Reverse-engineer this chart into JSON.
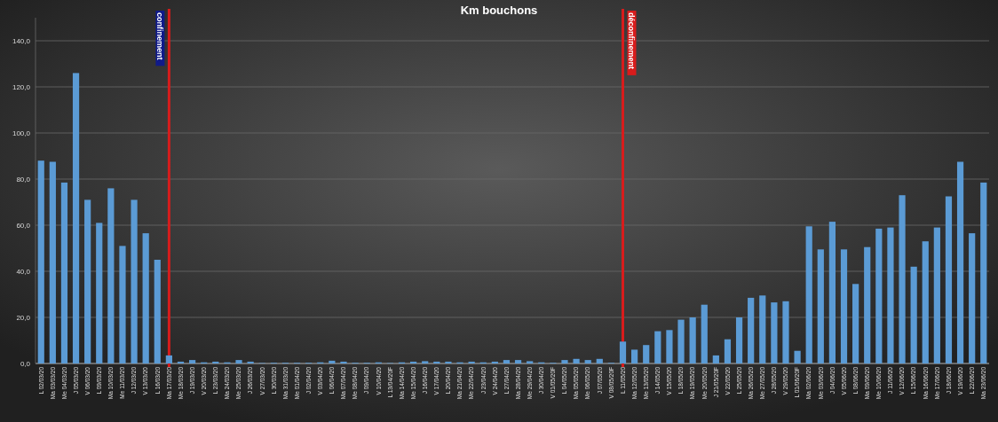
{
  "chart_data": {
    "type": "bar",
    "title": "Km bouchons",
    "categories": [
      "L 02/03/20",
      "Ma 03/03/20",
      "Me 04/03/20",
      "J 05/03/20",
      "V 06/03/20",
      "L 09/03/20",
      "Ma 10/03/20",
      "Me 11/03/20",
      "J 12/03/20",
      "V 13/03/20",
      "L 16/03/20",
      "Ma 17/03/20",
      "Me 18/03/20",
      "J 19/03/20",
      "V 20/03/20",
      "L 23/03/20",
      "Ma 24/03/20",
      "Me 25/03/20",
      "J 26/03/20",
      "V 27/03/20",
      "L 30/03/20",
      "Ma 31/03/20",
      "Me 01/04/20",
      "J 02/04/20",
      "V 03/04/20",
      "L 06/04/20",
      "Ma 07/04/20",
      "Me 08/04/20",
      "J 09/04/20",
      "V 10/04/20",
      "L 13/04/20F",
      "Ma 14/04/20",
      "Me 15/04/20",
      "J 16/04/20",
      "V 17/04/20",
      "L 20/04/20",
      "Ma 21/04/20",
      "Me 22/04/20",
      "J 23/04/20",
      "V 24/04/20",
      "L 27/04/20",
      "Ma 28/04/20",
      "Me 29/04/20",
      "J 30/04/20",
      "V 01/05/20F",
      "L 04/05/20",
      "Ma 05/05/20",
      "Me 06/05/20",
      "J 07/05/20",
      "V 08/05/20F",
      "L 11/05/20",
      "Ma 12/05/20",
      "Me 13/05/20",
      "J 14/05/20",
      "V 15/05/20",
      "L 18/05/20",
      "Ma 19/05/20",
      "Me 20/05/20",
      "J 21/05/20F",
      "V 22/05/20",
      "L 25/05/20",
      "Ma 26/05/20",
      "Me 27/05/20",
      "J 28/05/20",
      "V 29/05/20",
      "L 01/06/20F",
      "Ma 02/06/20",
      "Me 03/06/20",
      "J 04/06/20",
      "V 05/06/20",
      "L 08/06/20",
      "Ma 09/06/20",
      "Me 10/06/20",
      "J 11/06/20",
      "V 12/06/20",
      "L 15/06/20",
      "Ma 16/06/20",
      "Me 17/06/20",
      "J 18/06/20",
      "V 19/06/20",
      "L 22/06/20",
      "Ma 23/06/20"
    ],
    "values": [
      88,
      87.5,
      78.5,
      126,
      71,
      61,
      76,
      51,
      71,
      56.5,
      45,
      3.5,
      0.8,
      1.5,
      0.5,
      0.8,
      0.5,
      1.5,
      0.8,
      0.2,
      0.3,
      0.3,
      0.3,
      0.3,
      0.5,
      1.2,
      0.8,
      0.3,
      0.3,
      0.5,
      0.2,
      0.5,
      0.8,
      1,
      0.8,
      0.8,
      0.5,
      0.8,
      0.5,
      0.8,
      1.5,
      1.5,
      1,
      0.5,
      0.3,
      1.5,
      2,
      1.5,
      2,
      0.3,
      9.5,
      6,
      8,
      14,
      14.5,
      19,
      20,
      25.5,
      3.5,
      10.5,
      20,
      28.5,
      29.5,
      26.5,
      27,
      5.5,
      59.5,
      49.5,
      61.5,
      49.5,
      34.5,
      50.5,
      58.5,
      59,
      73,
      42,
      53,
      59,
      72.5,
      87.5,
      56.5,
      78.5
    ],
    "color": "#5b9bd5",
    "ylim": [
      0,
      150
    ],
    "yticks": [
      {
        "value": 0,
        "label": "0,0"
      },
      {
        "value": 20,
        "label": "20,0"
      },
      {
        "value": 40,
        "label": "40,0"
      },
      {
        "value": 60,
        "label": "60,0"
      },
      {
        "value": 80,
        "label": "80,0"
      },
      {
        "value": 100,
        "label": "100,0"
      },
      {
        "value": 120,
        "label": "120,0"
      },
      {
        "value": 140,
        "label": "140,0"
      }
    ],
    "grid": "y",
    "ref_lines": [
      {
        "axis": "x",
        "value": "Ma 17/03/20",
        "label": "confinement",
        "color": "#d81c1c"
      },
      {
        "axis": "x",
        "value": "L 11/05/20",
        "label": "déconfinement",
        "color": "#d81c1c"
      }
    ]
  }
}
